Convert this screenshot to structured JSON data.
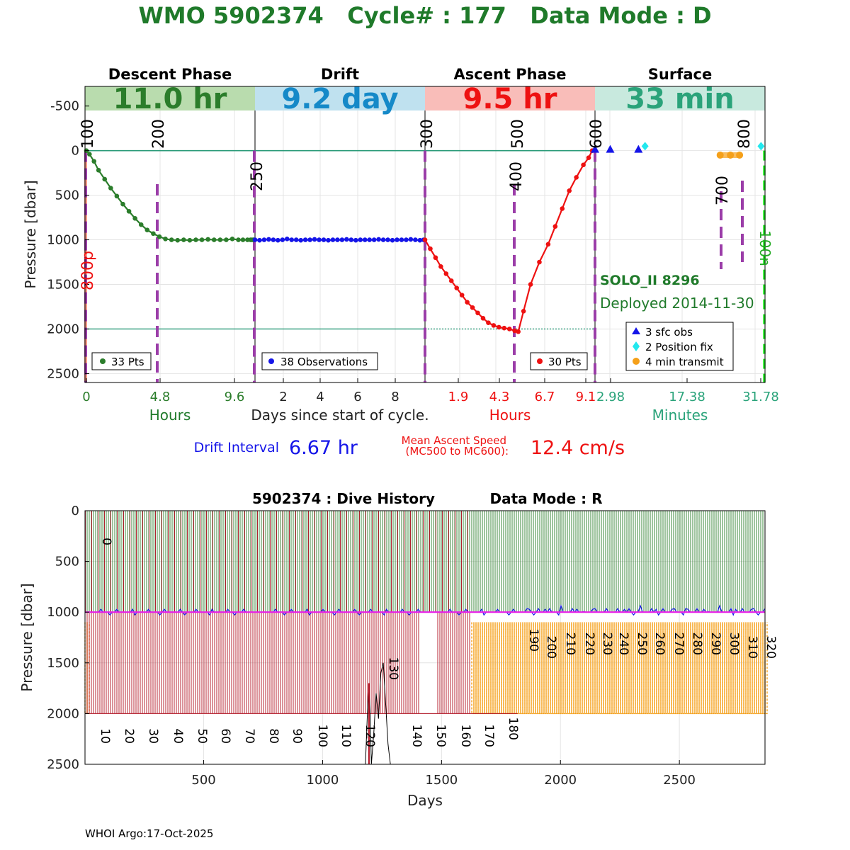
{
  "title": "WMO 5902374   Cycle# : 177   Data Mode : D",
  "colors": {
    "title_green": "#1f7a2a",
    "descent": "#2b7d2b",
    "descent_band": "#b9dcae",
    "drift_text": "#1589c8",
    "drift_band": "#bfe1ef",
    "ascent": "#ee1111",
    "ascent_band": "#f9bdb9",
    "surface_text": "#2aa37a",
    "surface_band": "#c8e9de",
    "purple": "#9b3da8",
    "teal_line": "#2a9a78",
    "blue": "#1515e8",
    "cyan": "#22e8ee",
    "orange": "#f5a01a",
    "salmon": "#f49a86",
    "lime": "#22ee22",
    "magenta": "#e81ee8",
    "dark_red": "#b01020"
  },
  "top": {
    "phases": [
      {
        "name": "Descent Phase",
        "value": "11.0 hr"
      },
      {
        "name": "Drift",
        "value": "9.2 day"
      },
      {
        "name": "Ascent Phase",
        "value": "9.5 hr"
      },
      {
        "name": "Surface",
        "value": "33 min"
      }
    ],
    "ylabel": "Pressure [dbar]",
    "yticks": [
      "-500",
      "0",
      "500",
      "1000",
      "1500",
      "2000",
      "2500"
    ],
    "ytick_values": [
      -500,
      0,
      500,
      1000,
      1500,
      2000,
      2500
    ],
    "ylim": [
      -720,
      2600
    ],
    "mc_labels": [
      "100",
      "200",
      "250",
      "300",
      "400",
      "500",
      "600",
      "700",
      "800"
    ],
    "side_labels": {
      "left": "800p",
      "right": "100n"
    },
    "xticks": {
      "descent": [
        "0",
        "4.8",
        "9.6"
      ],
      "drift": [
        "2",
        "4",
        "6",
        "8"
      ],
      "ascent": [
        "1.9",
        "4.3",
        "6.7",
        "9.1"
      ],
      "surface": [
        "2.98",
        "17.38",
        "31.78"
      ]
    },
    "xunits": {
      "descent": "Hours",
      "drift": "Days since start of cycle.",
      "ascent": "Hours",
      "surface": "Minutes"
    },
    "legends": {
      "descent": "33 Pts",
      "drift": "38 Observations",
      "ascent": "30 Pts"
    },
    "surface_legend": [
      "3 sfc obs",
      "2 Position fix",
      "4 min transmit"
    ],
    "float_model": "SOLO_II 8296",
    "deployed": "Deployed 2014-11-30",
    "drift_interval_label": "Drift Interval",
    "drift_interval_value": "6.67 hr",
    "ascent_speed_label_1": "Mean Ascent Speed",
    "ascent_speed_label_2": "(MC500 to MC600):",
    "ascent_speed_value": "12.4 cm/s"
  },
  "chart_data": [
    {
      "type": "line",
      "title": "WMO 5902374   Cycle# : 177   Data Mode : D",
      "ylabel": "Pressure [dbar]",
      "ylim": [
        -720,
        2600
      ],
      "y_reversed": true,
      "series": [
        {
          "name": "33 Pts",
          "phase": "descent",
          "x_hours": [
            0.0,
            0.2,
            0.5,
            0.8,
            1.2,
            1.6,
            2.0,
            2.4,
            2.8,
            3.2,
            3.6,
            4.0,
            4.4,
            4.8,
            5.2,
            5.6,
            6.0,
            6.4,
            6.8,
            7.2,
            7.6,
            8.0,
            8.4,
            8.8,
            9.2,
            9.6,
            10.0,
            10.3,
            10.6,
            10.8,
            10.9,
            11.0,
            11.0
          ],
          "pressure": [
            0,
            40,
            120,
            220,
            320,
            420,
            510,
            600,
            680,
            760,
            830,
            890,
            930,
            965,
            990,
            1000,
            1005,
            1000,
            1005,
            1000,
            1000,
            995,
            1000,
            1000,
            1000,
            990,
            1000,
            1000,
            1000,
            1000,
            1000,
            1000,
            1000
          ]
        },
        {
          "name": "38 Observations",
          "phase": "drift",
          "x_days": [
            0.0,
            0.25,
            0.5,
            0.75,
            1.0,
            1.25,
            1.5,
            1.75,
            2.0,
            2.25,
            2.5,
            2.75,
            3.0,
            3.25,
            3.5,
            3.75,
            4.0,
            4.25,
            4.5,
            4.75,
            5.0,
            5.25,
            5.5,
            5.75,
            6.0,
            6.25,
            6.5,
            6.75,
            7.0,
            7.25,
            7.5,
            7.75,
            8.0,
            8.25,
            8.5,
            8.75,
            9.0,
            9.2
          ],
          "pressure": [
            1000,
            1005,
            1000,
            995,
            1000,
            1005,
            1000,
            990,
            1000,
            1000,
            1005,
            1000,
            1000,
            995,
            1000,
            1000,
            1005,
            1000,
            1000,
            1000,
            995,
            1000,
            1005,
            1000,
            1000,
            1000,
            1000,
            995,
            1000,
            1000,
            1005,
            1000,
            1000,
            1000,
            995,
            1000,
            1005,
            1000
          ]
        },
        {
          "name": "30 Pts",
          "phase": "ascent",
          "x_hours": [
            0.0,
            0.3,
            0.6,
            0.9,
            1.2,
            1.5,
            1.8,
            2.1,
            2.4,
            2.7,
            3.0,
            3.3,
            3.6,
            3.9,
            4.2,
            4.5,
            4.8,
            5.1,
            5.3,
            5.6,
            6.0,
            6.5,
            7.0,
            7.4,
            7.8,
            8.2,
            8.6,
            9.0,
            9.3,
            9.5
          ],
          "pressure": [
            1000,
            1100,
            1200,
            1300,
            1380,
            1460,
            1540,
            1620,
            1700,
            1760,
            1820,
            1880,
            1930,
            1960,
            1980,
            1990,
            2000,
            2020,
            2030,
            1800,
            1500,
            1250,
            1050,
            850,
            650,
            450,
            300,
            160,
            80,
            0
          ]
        },
        {
          "name": "3 sfc obs",
          "phase": "surface",
          "x_minutes": [
            0.0,
            2.98,
            8.5
          ],
          "pressure": [
            0,
            0,
            0
          ]
        },
        {
          "name": "2 Position fix",
          "phase": "surface",
          "x_minutes": [
            9.8,
            32.5
          ],
          "pressure": [
            -50,
            -50
          ]
        },
        {
          "name": "4 min transmit",
          "phase": "surface",
          "x_minutes": [
            24.5,
            26.5,
            28.3
          ],
          "pressure": [
            50,
            50,
            50
          ]
        }
      ]
    },
    {
      "type": "bar",
      "title": "5902374 : Dive History      Data Mode : R",
      "xlabel": "Days",
      "ylabel": "Pressure [dbar]",
      "xlim": [
        1,
        2860
      ],
      "ylim": [
        0,
        2500
      ],
      "y_reversed": true,
      "xticks": [
        500,
        1000,
        1500,
        2000,
        2500
      ],
      "yticks": [
        0,
        500,
        1000,
        1500,
        2000,
        2500
      ],
      "cycle_interval_days": 10,
      "cycles": 320,
      "drift_pressure": 1000,
      "profile_pressure": 2000,
      "cycle_labels": [
        "0",
        "10",
        "20",
        "30",
        "40",
        "50",
        "60",
        "70",
        "80",
        "90",
        "100",
        "110",
        "120",
        "130",
        "140",
        "150",
        "160",
        "170",
        "180",
        "190",
        "200",
        "210",
        "220",
        "230",
        "240",
        "250",
        "260",
        "270",
        "280",
        "290",
        "300",
        "310",
        "320"
      ]
    }
  ],
  "bottom": {
    "title_left": "5902374 : Dive History",
    "title_right": "Data Mode : R",
    "xlabel": "Days",
    "ylabel": "Pressure [dbar]",
    "xticks": [
      "500",
      "1000",
      "1500",
      "2000",
      "2500"
    ],
    "yticks": [
      "0",
      "500",
      "1000",
      "1500",
      "2000",
      "2500"
    ]
  },
  "footer": "WHOI Argo:17-Oct-2025"
}
